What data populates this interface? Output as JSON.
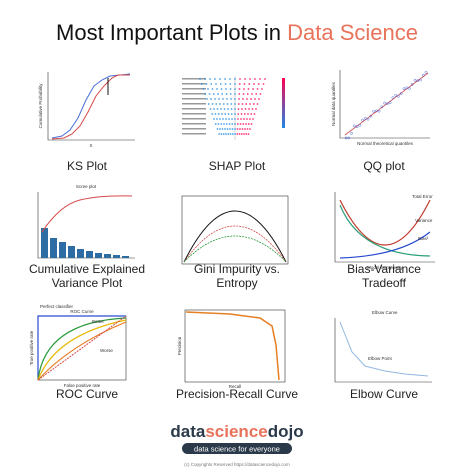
{
  "header": {
    "title": "Most Important Plots in",
    "highlight": "Data Science"
  },
  "plots": [
    {
      "label": [
        "KS Plot"
      ],
      "annotations": [
        "Cumulative Probability",
        "X"
      ]
    },
    {
      "label": [
        "SHAP Plot"
      ],
      "annotations": []
    },
    {
      "label": [
        "QQ plot"
      ],
      "annotations": [
        "Normal data quantiles",
        "Normal theoretical quantiles"
      ]
    },
    {
      "label": [
        "Cumulative Explained",
        "Variance Plot"
      ],
      "annotations": [
        "Scree plot"
      ]
    },
    {
      "label": [
        "Gini Impurity vs.",
        "Entropy"
      ],
      "annotations": []
    },
    {
      "label": [
        "Bias-Variance",
        "Tradeoff"
      ],
      "annotations": [
        "Total Error",
        "Variance",
        "Bias²",
        "Model Complexity"
      ]
    },
    {
      "label": [
        "ROC Curve"
      ],
      "annotations": [
        "ROC Curve",
        "Perfect classifier",
        "Better",
        "Worse",
        "True positive rate",
        "False positive rate"
      ]
    },
    {
      "label": [
        "Precision-Recall Curve"
      ],
      "annotations": [
        "Precision",
        "Recall"
      ]
    },
    {
      "label": [
        "Elbow Curve"
      ],
      "annotations": [
        "Elbow Curve",
        "Elbow Point"
      ]
    }
  ],
  "footer": {
    "logo": [
      "data",
      "science",
      "dojo"
    ],
    "tagline": "data science for everyone",
    "copyright": "(c) Copyrights Reserved  https://datasciencedojo.com"
  }
}
